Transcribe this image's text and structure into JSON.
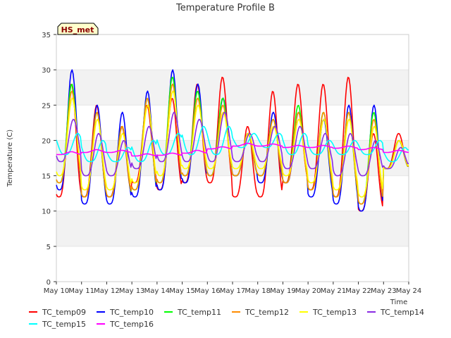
{
  "chart_data": {
    "type": "line",
    "title": "Temperature Profile B",
    "xlabel": "Time",
    "ylabel": "Temperature (C)",
    "ylim": [
      0,
      35
    ],
    "yticks": [
      0,
      5,
      10,
      15,
      20,
      25,
      30,
      35
    ],
    "xlim": [
      "2024-05-10",
      "2024-05-24"
    ],
    "xtick_labels": [
      "May 10",
      "May 11",
      "May 12",
      "May 13",
      "May 14",
      "May 15",
      "May 16",
      "May 17",
      "May 18",
      "May 19",
      "May 20",
      "May 21",
      "May 22",
      "May 23",
      "May 24"
    ],
    "grid": true,
    "legend_position": "bottom",
    "annotation": "HS_met",
    "daily_min_max_note": "per-day [min, max] read from plot; series oscillate diurnally",
    "series": [
      {
        "name": "TC_temp09",
        "color": "#ff0000",
        "daily": [
          [
            12,
            28
          ],
          [
            12,
            25
          ],
          [
            12,
            22
          ],
          [
            14,
            25
          ],
          [
            13,
            26
          ],
          [
            14,
            28
          ],
          [
            14,
            29
          ],
          [
            12,
            22
          ],
          [
            12,
            27
          ],
          [
            14,
            28
          ],
          [
            13,
            28
          ],
          [
            12,
            29
          ],
          [
            10,
            21
          ],
          [
            16,
            21
          ]
        ]
      },
      {
        "name": "TC_temp10",
        "color": "#0000ff",
        "daily": [
          [
            13,
            30
          ],
          [
            11,
            25
          ],
          [
            11,
            24
          ],
          [
            12,
            27
          ],
          [
            13,
            30
          ],
          [
            14,
            28
          ],
          [
            15,
            26
          ],
          [
            15,
            21
          ],
          [
            14,
            24
          ],
          [
            14,
            24
          ],
          [
            12,
            23
          ],
          [
            11,
            25
          ],
          [
            10,
            25
          ],
          [
            16,
            20
          ]
        ]
      },
      {
        "name": "TC_temp11",
        "color": "#00ff00",
        "daily": [
          [
            14,
            28
          ],
          [
            12,
            24
          ],
          [
            12,
            22
          ],
          [
            13,
            26
          ],
          [
            14,
            29
          ],
          [
            15,
            27
          ],
          [
            15,
            26
          ],
          [
            15,
            21
          ],
          [
            15,
            23
          ],
          [
            14,
            25
          ],
          [
            13,
            24
          ],
          [
            12,
            24
          ],
          [
            11,
            24
          ],
          [
            16,
            20
          ]
        ]
      },
      {
        "name": "TC_temp12",
        "color": "#ff8c00",
        "daily": [
          [
            14,
            27
          ],
          [
            12,
            24
          ],
          [
            12,
            22
          ],
          [
            13,
            26
          ],
          [
            14,
            28
          ],
          [
            15,
            26
          ],
          [
            15,
            25
          ],
          [
            15,
            21
          ],
          [
            15,
            23
          ],
          [
            14,
            24
          ],
          [
            13,
            24
          ],
          [
            12,
            24
          ],
          [
            11,
            23
          ],
          [
            16,
            20
          ]
        ]
      },
      {
        "name": "TC_temp13",
        "color": "#ffff00",
        "daily": [
          [
            15,
            26
          ],
          [
            13,
            23
          ],
          [
            13,
            21
          ],
          [
            14,
            25
          ],
          [
            15,
            27
          ],
          [
            16,
            25
          ],
          [
            16,
            24
          ],
          [
            16,
            21
          ],
          [
            16,
            22
          ],
          [
            15,
            23
          ],
          [
            14,
            23
          ],
          [
            13,
            23
          ],
          [
            12,
            22
          ],
          [
            16,
            20
          ]
        ]
      },
      {
        "name": "TC_temp14",
        "color": "#8a2be2",
        "daily": [
          [
            17,
            23
          ],
          [
            15,
            21
          ],
          [
            15,
            20
          ],
          [
            16,
            22
          ],
          [
            17,
            24
          ],
          [
            17,
            23
          ],
          [
            17,
            24
          ],
          [
            17,
            21
          ],
          [
            17,
            22
          ],
          [
            16,
            22
          ],
          [
            16,
            21
          ],
          [
            15,
            21
          ],
          [
            15,
            20
          ],
          [
            16,
            19
          ]
        ]
      },
      {
        "name": "TC_temp15",
        "color": "#00ffff",
        "daily": [
          [
            18,
            21
          ],
          [
            17,
            20
          ],
          [
            17,
            19
          ],
          [
            17,
            20
          ],
          [
            18,
            21
          ],
          [
            18,
            22
          ],
          [
            18,
            22
          ],
          [
            19,
            21
          ],
          [
            19,
            21
          ],
          [
            18,
            21
          ],
          [
            18,
            20
          ],
          [
            18,
            20
          ],
          [
            18,
            20
          ],
          [
            17,
            19
          ]
        ]
      },
      {
        "name": "TC_temp16",
        "color": "#ff00ff",
        "daily": [
          [
            18.0,
            18.4
          ],
          [
            18.3,
            18.7
          ],
          [
            18.3,
            18.6
          ],
          [
            17.8,
            18.1
          ],
          [
            17.9,
            18.2
          ],
          [
            18.2,
            18.6
          ],
          [
            18.8,
            19.1
          ],
          [
            19.2,
            19.6
          ],
          [
            19.2,
            19.5
          ],
          [
            19.0,
            19.3
          ],
          [
            19.0,
            19.3
          ],
          [
            18.9,
            19.2
          ],
          [
            18.7,
            19.0
          ],
          [
            18.3,
            18.6
          ]
        ]
      }
    ]
  },
  "legend": {
    "items": [
      {
        "label": "TC_temp09",
        "color": "#ff0000"
      },
      {
        "label": "TC_temp10",
        "color": "#0000ff"
      },
      {
        "label": "TC_temp11",
        "color": "#00ff00"
      },
      {
        "label": "TC_temp12",
        "color": "#ff8c00"
      },
      {
        "label": "TC_temp13",
        "color": "#ffff00"
      },
      {
        "label": "TC_temp14",
        "color": "#8a2be2"
      },
      {
        "label": "TC_temp15",
        "color": "#00ffff"
      },
      {
        "label": "TC_temp16",
        "color": "#ff00ff"
      }
    ]
  }
}
